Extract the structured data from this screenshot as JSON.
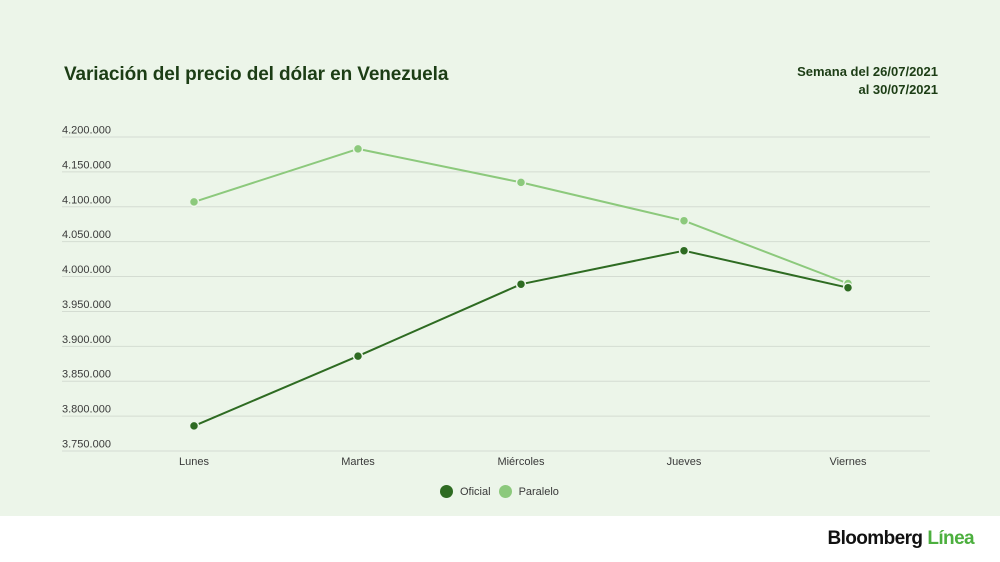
{
  "header": {
    "title": "Variación del precio del dólar en Venezuela",
    "subtitle_line1": "Semana del 26/07/2021",
    "subtitle_line2": "al 30/07/2021"
  },
  "legend": {
    "items": [
      {
        "label": "Oficial",
        "color": "#2e6b22"
      },
      {
        "label": "Paralelo",
        "color": "#8cc97c"
      }
    ]
  },
  "footer": {
    "brand_main": "Bloomberg",
    "brand_accent": "Línea"
  },
  "colors": {
    "background": "#ecf5e9",
    "gridline": "#d4dcd2",
    "oficial": "#2e6b22",
    "paralelo": "#8cc97c",
    "title": "#1c3d15"
  },
  "chart_data": {
    "type": "line",
    "title": "Variación del precio del dólar en Venezuela",
    "subtitle": "Semana del 26/07/2021 al 30/07/2021",
    "xlabel": "",
    "ylabel": "",
    "categories": [
      "Lunes",
      "Martes",
      "Miércoles",
      "Jueves",
      "Viernes"
    ],
    "series": [
      {
        "name": "Oficial",
        "color": "#2e6b22",
        "values": [
          3786000,
          3886000,
          3989000,
          4037000,
          3984000
        ]
      },
      {
        "name": "Paralelo",
        "color": "#8cc97c",
        "values": [
          4107000,
          4183000,
          4135000,
          4080000,
          3990000
        ]
      }
    ],
    "ylim": [
      3750000,
      4200000
    ],
    "yticks": [
      4200000,
      4150000,
      4100000,
      4050000,
      4000000,
      3950000,
      3900000,
      3850000,
      3800000,
      3750000
    ],
    "ytick_labels": [
      "4.200.000",
      "4.150.000",
      "4.100.000",
      "4.050.000",
      "4.000.000",
      "3.950.000",
      "3.900.000",
      "3.850.000",
      "3.800.000",
      "3.750.000"
    ],
    "grid": true,
    "legend_position": "bottom"
  }
}
